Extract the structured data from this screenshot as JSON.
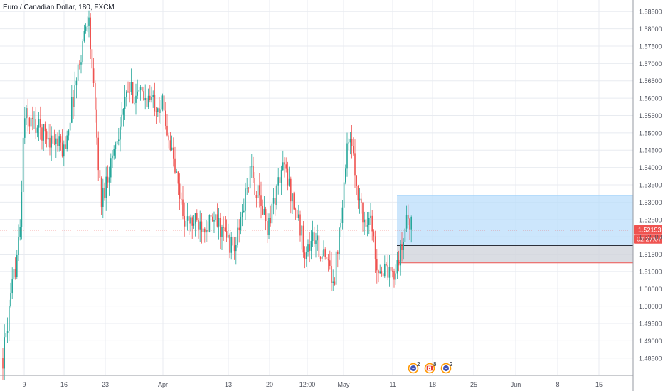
{
  "chart_title": "Euro / Canadian Dollar, 180, FXCM",
  "colors": {
    "up": "#26a69a",
    "down": "#ef5350",
    "grid": "#e8ebf0",
    "axis_text": "#50535e",
    "profit_zone": "#bbdefb",
    "profit_border": "#2196f3",
    "loss_zone": "#d1d4dc",
    "loss_border": "#ef5350",
    "entry_line": "#131722",
    "price_label_bg": "#ef5350"
  },
  "last_price_label": "1.52193",
  "countdown_label": "02:27:07",
  "event_markers": [
    {
      "icon": "economic-event-icon",
      "count": "2"
    },
    {
      "icon": "canada-flag-icon",
      "count": "8"
    },
    {
      "icon": "economic-event-icon",
      "count": "2"
    }
  ],
  "chart_data": {
    "type": "candlestick",
    "title": "Euro / Canadian Dollar, 180, FXCM",
    "symbol": "EURCAD",
    "interval": "180",
    "source": "FXCM",
    "y_axis": {
      "range": [
        1.4825,
        1.5875
      ],
      "ticks": [
        "1.58500",
        "1.58000",
        "1.57500",
        "1.57000",
        "1.56500",
        "1.56000",
        "1.55500",
        "1.55000",
        "1.54500",
        "1.54000",
        "1.53500",
        "1.53000",
        "1.52500",
        "1.52000",
        "1.51500",
        "1.51000",
        "1.50500",
        "1.50000",
        "1.49500",
        "1.49000",
        "1.48500"
      ]
    },
    "x_axis": {
      "ticks": [
        "9",
        "16",
        "23",
        "Apr",
        "13",
        "20",
        "12:00",
        "May",
        "11",
        "18",
        "25",
        "Jun",
        "8",
        "15"
      ]
    },
    "last_price": 1.52193,
    "approx_close_path": [
      [
        "start",
        1.485
      ],
      [
        "9 Mar",
        1.521
      ],
      [
        "9 Mar",
        1.555
      ],
      [
        "16 Mar",
        1.545
      ],
      [
        "20 Mar",
        1.585
      ],
      [
        "23 Mar",
        1.53
      ],
      [
        "26 Mar",
        1.562
      ],
      [
        "Apr",
        1.558
      ],
      [
        "6 Apr",
        1.524
      ],
      [
        "10 Apr",
        1.524
      ],
      [
        "13 Apr",
        1.516
      ],
      [
        "15 Apr",
        1.539
      ],
      [
        "20 Apr",
        1.523
      ],
      [
        "21 Apr",
        1.541
      ],
      [
        "23 Apr",
        1.526
      ],
      [
        "24 Apr",
        1.515
      ],
      [
        "27 Apr",
        1.52
      ],
      [
        "29 Apr",
        1.508
      ],
      [
        "30 Apr",
        1.524
      ],
      [
        "May",
        1.55
      ],
      [
        "6 May",
        1.525
      ],
      [
        "8 May",
        1.526
      ],
      [
        "8 May",
        1.512
      ],
      [
        "11 May",
        1.508
      ],
      [
        "12 May",
        1.517
      ],
      [
        "14 May",
        1.527
      ],
      [
        "15 May",
        1.522
      ]
    ],
    "position_tool": {
      "entry": 1.5175,
      "target": 1.532,
      "stop": 1.5125
    },
    "grid": true
  }
}
